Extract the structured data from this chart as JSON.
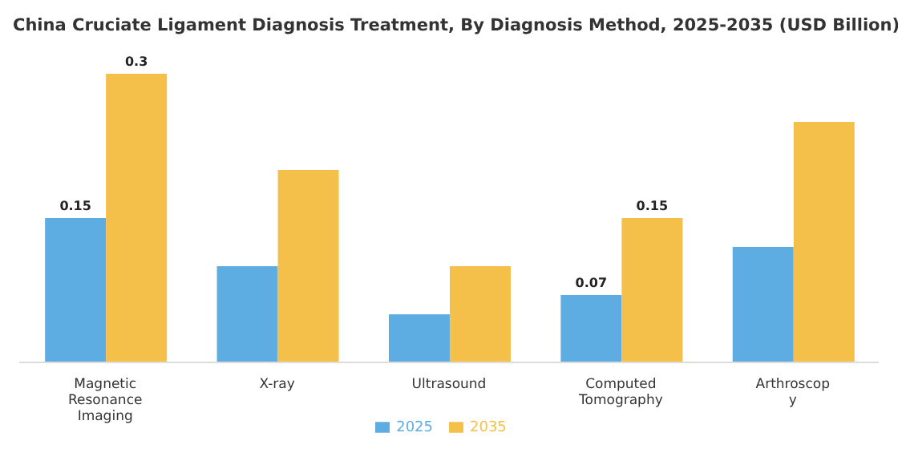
{
  "chart_data": {
    "type": "bar",
    "title": "China Cruciate Ligament Diagnosis Treatment, By Diagnosis Method, 2025-2035 (USD Billion)",
    "categories": [
      "Magnetic Resonance Imaging",
      "X-ray",
      "Ultrasound",
      "Computed Tomography",
      "Arthroscopy"
    ],
    "series": [
      {
        "name": "2025",
        "color": "#5dade2",
        "values": [
          0.15,
          0.1,
          0.05,
          0.07,
          0.12
        ],
        "value_labels": [
          "0.15",
          null,
          null,
          "0.07",
          null
        ]
      },
      {
        "name": "2035",
        "color": "#f5c04a",
        "values": [
          0.3,
          0.2,
          0.1,
          0.15,
          0.25
        ],
        "value_labels": [
          "0.3",
          null,
          null,
          "0.15",
          null
        ]
      }
    ],
    "legend": "bottom",
    "grid": false
  }
}
